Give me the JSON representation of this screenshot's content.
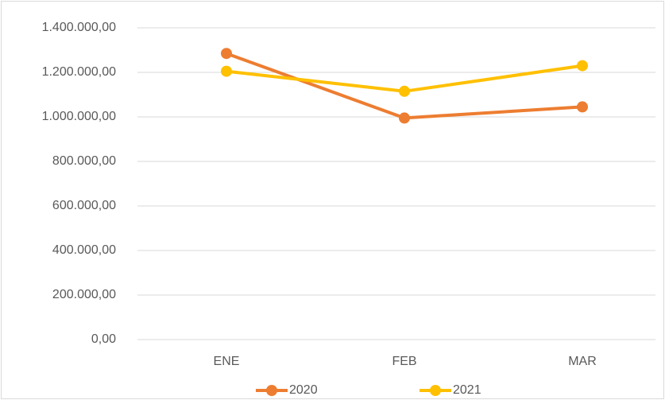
{
  "chart_data": {
    "type": "line",
    "categories": [
      "ENE",
      "FEB",
      "MAR"
    ],
    "series": [
      {
        "name": "2020",
        "color": "#ed7d31",
        "values": [
          1285000,
          995000,
          1045000
        ]
      },
      {
        "name": "2021",
        "color": "#ffc000",
        "values": [
          1205000,
          1115000,
          1230000
        ]
      }
    ],
    "ylim": [
      0,
      1400000
    ],
    "yticks": [
      {
        "value": 0,
        "label": "0,00"
      },
      {
        "value": 200000,
        "label": "200.000,00"
      },
      {
        "value": 400000,
        "label": "400.000,00"
      },
      {
        "value": 600000,
        "label": "600.000,00"
      },
      {
        "value": 800000,
        "label": "800.000,00"
      },
      {
        "value": 1000000,
        "label": "1.000.000,00"
      },
      {
        "value": 1200000,
        "label": "1.200.000,00"
      },
      {
        "value": 1400000,
        "label": "1.400.000,00"
      }
    ],
    "grid": true,
    "legend": "bottom"
  }
}
